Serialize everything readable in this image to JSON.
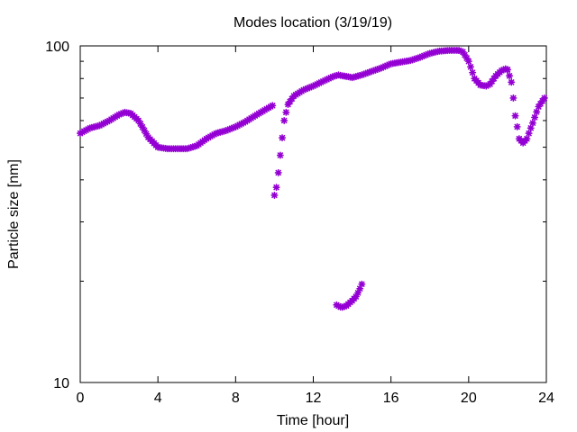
{
  "chart_data": {
    "type": "scatter",
    "title": "Modes location (3/19/19)",
    "xlabel": "Time [hour]",
    "ylabel": "Particle size [nm]",
    "xlim": [
      0,
      24
    ],
    "ylim": [
      10,
      100
    ],
    "yscale": "log",
    "xticks": [
      0,
      4,
      8,
      12,
      16,
      20,
      24
    ],
    "yticks_major": [
      10,
      100
    ],
    "yticks_minor": [
      20,
      30,
      40,
      50,
      60,
      70,
      80,
      90
    ],
    "grid": false,
    "legend": "none",
    "marker_color": "#9400d3",
    "marker": "star",
    "series": [
      {
        "anchors_x": [
          0,
          0.5,
          1.0,
          1.5,
          2.0,
          2.3,
          2.6,
          3.0,
          3.5,
          4.0,
          4.5,
          5.0,
          5.5,
          6.0,
          6.5,
          7.0,
          7.5,
          8.0,
          8.5,
          9.0,
          9.5,
          9.9
        ],
        "anchors_y": [
          55,
          57,
          58,
          60,
          62.5,
          63.5,
          63,
          60,
          53.5,
          50,
          49.5,
          49.5,
          49.5,
          50.5,
          53,
          55,
          56,
          57.5,
          59.5,
          62,
          64.5,
          66.5
        ]
      },
      {
        "anchors_x": [
          10.0,
          10.1,
          10.2,
          10.35,
          10.5,
          10.7,
          11.0,
          11.5,
          12.0,
          12.5,
          13.0,
          13.3,
          13.5,
          13.8,
          14.0,
          14.5,
          15.0,
          15.5,
          16.0,
          16.5,
          17.0,
          17.5,
          18.0,
          18.5,
          19.0,
          19.5,
          19.7,
          20.0,
          20.3,
          20.6,
          20.9,
          21.1,
          21.4,
          21.7,
          21.9,
          22.0
        ],
        "anchors_y": [
          36,
          38,
          42,
          50,
          60,
          67,
          71,
          74,
          76,
          78.5,
          81,
          82,
          81.5,
          81,
          80.5,
          82,
          84,
          86,
          88.5,
          89.5,
          90.5,
          92.5,
          95,
          96.5,
          97,
          97,
          96,
          90,
          80,
          76.5,
          76,
          77,
          81.5,
          84.5,
          85.5,
          85
        ]
      },
      {
        "anchors_x": [
          22.0,
          22.2,
          22.4,
          22.6,
          22.8,
          23.0,
          23.3,
          23.6,
          23.9
        ],
        "anchors_y": [
          85,
          78,
          62,
          53,
          51.5,
          53,
          59,
          66,
          70
        ]
      },
      {
        "anchors_x": [
          13.2,
          13.45,
          13.7,
          14.0,
          14.2,
          14.35,
          14.5
        ],
        "anchors_y": [
          17.0,
          16.7,
          16.9,
          17.5,
          18.0,
          18.7,
          19.6
        ]
      }
    ],
    "point_step_hours": 0.1
  }
}
